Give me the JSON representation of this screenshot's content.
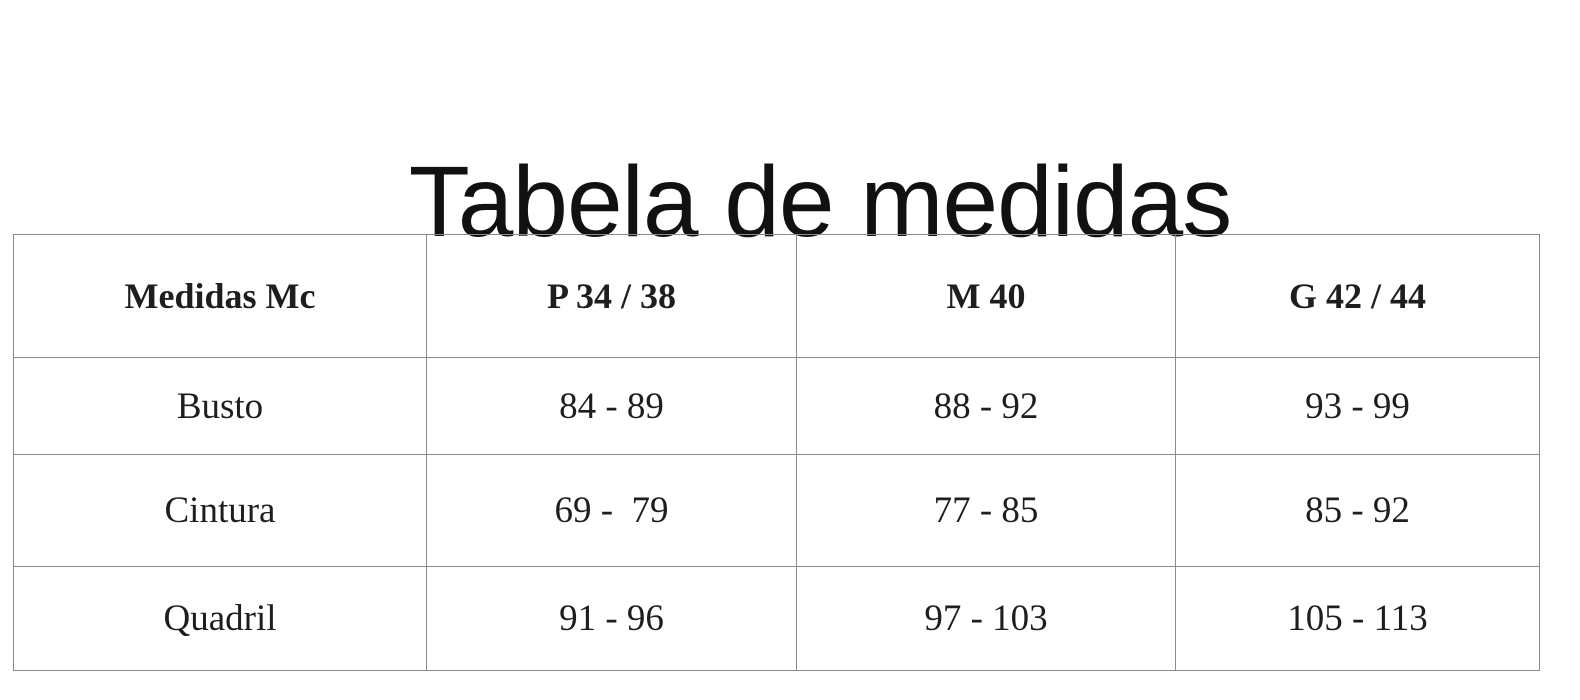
{
  "title": "Tabela de medidas",
  "table": {
    "headers": [
      "Medidas Mc",
      "P 34 / 38",
      "M 40",
      "G 42 / 44"
    ],
    "rows": [
      [
        "Busto",
        "84 - 89",
        "88 - 92",
        "93 - 99"
      ],
      [
        "Cintura",
        "69 -  79",
        "77 - 85",
        "85 - 92"
      ],
      [
        "Quadril",
        "91 - 96",
        "97 - 103",
        "105 - 113"
      ]
    ]
  }
}
